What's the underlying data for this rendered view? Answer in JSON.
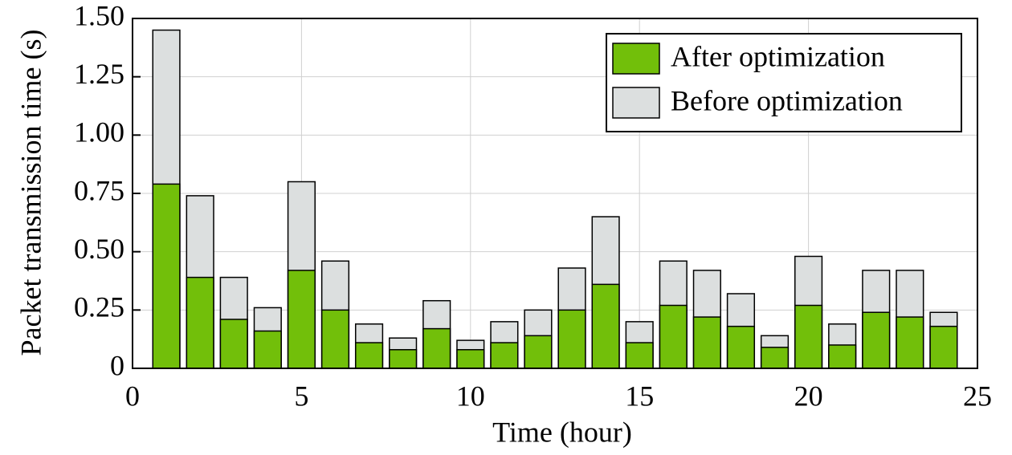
{
  "chart_data": {
    "type": "bar",
    "xlabel": "Time (hour)",
    "ylabel": "Packet transmission time (s)",
    "x": [
      1,
      2,
      3,
      4,
      5,
      6,
      7,
      8,
      9,
      10,
      11,
      12,
      13,
      14,
      15,
      16,
      17,
      18,
      19,
      20,
      21,
      22,
      23,
      24
    ],
    "series": [
      {
        "name": "After optimization",
        "color": "#72bf0a",
        "values": [
          0.79,
          0.39,
          0.21,
          0.16,
          0.42,
          0.25,
          0.11,
          0.08,
          0.17,
          0.08,
          0.11,
          0.14,
          0.25,
          0.36,
          0.11,
          0.27,
          0.22,
          0.18,
          0.09,
          0.27,
          0.1,
          0.24,
          0.22,
          0.18
        ]
      },
      {
        "name": "Before optimization",
        "color": "#dcdfdf",
        "values": [
          1.45,
          0.74,
          0.39,
          0.26,
          0.8,
          0.46,
          0.19,
          0.13,
          0.29,
          0.12,
          0.2,
          0.25,
          0.43,
          0.65,
          0.2,
          0.46,
          0.42,
          0.32,
          0.14,
          0.48,
          0.19,
          0.42,
          0.42,
          0.24
        ]
      }
    ],
    "xlim": [
      0,
      25
    ],
    "xticks": [
      0,
      5,
      10,
      15,
      20,
      25
    ],
    "ylim": [
      0,
      1.5
    ],
    "yticks": [
      0,
      0.25,
      {
        "value": 0.5,
        "label": "0.50"
      },
      0.75,
      {
        "value": 1,
        "label": "1.00"
      },
      1.25,
      {
        "value": 1.5,
        "label": "1.50"
      }
    ],
    "grid": true,
    "legend": "upper right"
  }
}
